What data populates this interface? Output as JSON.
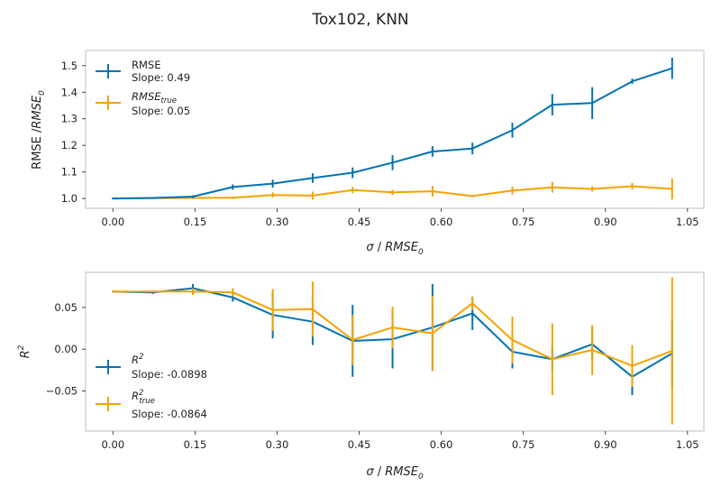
{
  "figure": {
    "title": "Tox102, KNN"
  },
  "colors": {
    "blue": "#0173b2",
    "orange": "#f5a300",
    "frame": "#c8c8c8"
  },
  "chart_data": [
    {
      "type": "line",
      "xlabel": "σ / RMSE_0",
      "ylabel": "RMSE / RMSE_0",
      "xlim": [
        -0.05,
        1.08
      ],
      "ylim": [
        0.963,
        1.557
      ],
      "xticks": [
        "0.00",
        "0.15",
        "0.30",
        "0.45",
        "0.60",
        "0.75",
        "0.90",
        "1.05"
      ],
      "yticks": [
        "1.0",
        "1.1",
        "1.2",
        "1.3",
        "1.4",
        "1.5"
      ],
      "grid": false,
      "legend_position": "top-left",
      "x": [
        0.0,
        0.073,
        0.146,
        0.219,
        0.292,
        0.365,
        0.438,
        0.511,
        0.584,
        0.657,
        0.73,
        0.803,
        0.876,
        0.949,
        1.022
      ],
      "series": [
        {
          "name": "RMSE",
          "slope_label": "Slope: 0.49",
          "color": "#0173b2",
          "values": [
            1.0,
            1.002,
            1.007,
            1.043,
            1.056,
            1.077,
            1.097,
            1.135,
            1.177,
            1.188,
            1.257,
            1.353,
            1.359,
            1.441,
            1.49
          ],
          "errors": [
            0.003,
            0.003,
            0.005,
            0.01,
            0.015,
            0.018,
            0.02,
            0.028,
            0.02,
            0.022,
            0.028,
            0.04,
            0.06,
            0.01,
            0.04
          ]
        },
        {
          "name": "RMSE_true",
          "slope_label": "Slope: 0.05",
          "color": "#f5a300",
          "values": [
            1.0,
            1.001,
            1.002,
            1.003,
            1.013,
            1.011,
            1.032,
            1.023,
            1.027,
            1.009,
            1.03,
            1.042,
            1.036,
            1.046,
            1.036
          ],
          "errors": [
            0.003,
            0.003,
            0.003,
            0.004,
            0.01,
            0.015,
            0.012,
            0.01,
            0.02,
            0.004,
            0.015,
            0.02,
            0.01,
            0.012,
            0.04
          ]
        }
      ]
    },
    {
      "type": "line",
      "xlabel": "σ / RMSE_0",
      "ylabel": "R^2",
      "xlim": [
        -0.05,
        1.08
      ],
      "ylim": [
        -0.098,
        0.092
      ],
      "xticks": [
        "0.00",
        "0.15",
        "0.30",
        "0.45",
        "0.60",
        "0.75",
        "0.90",
        "1.05"
      ],
      "yticks": [
        "−0.05",
        "0.00",
        "0.05"
      ],
      "ytick_values": [
        -0.05,
        0.0,
        0.05
      ],
      "grid": false,
      "legend_position": "lower-left",
      "x": [
        0.0,
        0.073,
        0.146,
        0.219,
        0.292,
        0.365,
        0.438,
        0.511,
        0.584,
        0.657,
        0.73,
        0.803,
        0.876,
        0.949,
        1.022
      ],
      "series": [
        {
          "name": "R^2",
          "slope_label": "Slope: -0.0898",
          "color": "#0173b2",
          "values": [
            0.069,
            0.068,
            0.073,
            0.062,
            0.041,
            0.033,
            0.01,
            0.012,
            0.026,
            0.043,
            -0.003,
            -0.012,
            0.006,
            -0.033,
            -0.005
          ],
          "errors": [
            0.001,
            0.002,
            0.005,
            0.005,
            0.028,
            0.028,
            0.043,
            0.035,
            0.052,
            0.02,
            0.02,
            0.015,
            0.02,
            0.022,
            0.04
          ]
        },
        {
          "name": "R^2_true",
          "slope_label": "Slope: -0.0864",
          "color": "#f5a300",
          "values": [
            0.069,
            0.069,
            0.069,
            0.068,
            0.047,
            0.048,
            0.011,
            0.026,
            0.019,
            0.055,
            0.011,
            -0.012,
            -0.001,
            -0.02,
            -0.002
          ],
          "errors": [
            0.001,
            0.001,
            0.004,
            0.005,
            0.025,
            0.033,
            0.03,
            0.025,
            0.045,
            0.008,
            0.028,
            0.043,
            0.03,
            0.025,
            0.088
          ]
        }
      ]
    }
  ]
}
